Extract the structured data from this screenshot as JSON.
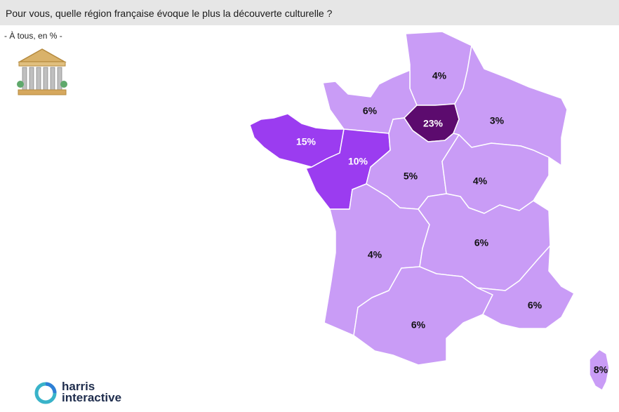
{
  "header": {
    "title": "Pour vous, quelle région française évoque le plus la découverte culturelle ?",
    "subtitle": "- À tous, en % -"
  },
  "icon": {
    "name": "museum-icon"
  },
  "map": {
    "regions": [
      {
        "id": "hauts-de-france",
        "value": "4%",
        "fill": "#c99cf6",
        "text_color": "#111111"
      },
      {
        "id": "normandie",
        "value": "6%",
        "fill": "#c99cf6",
        "text_color": "#111111"
      },
      {
        "id": "ile-de-france",
        "value": "23%",
        "fill": "#5c0b6e",
        "text_color": "#ffffff"
      },
      {
        "id": "grand-est",
        "value": "3%",
        "fill": "#c99cf6",
        "text_color": "#111111"
      },
      {
        "id": "bretagne",
        "value": "15%",
        "fill": "#9b3cf0",
        "text_color": "#ffffff"
      },
      {
        "id": "pays-de-la-loire",
        "value": "10%",
        "fill": "#9b3cf0",
        "text_color": "#ffffff"
      },
      {
        "id": "centre-val-de-loire",
        "value": "5%",
        "fill": "#c99cf6",
        "text_color": "#111111"
      },
      {
        "id": "bourgogne-franche-comte",
        "value": "4%",
        "fill": "#c99cf6",
        "text_color": "#111111"
      },
      {
        "id": "nouvelle-aquitaine",
        "value": "4%",
        "fill": "#c99cf6",
        "text_color": "#111111"
      },
      {
        "id": "auvergne-rhone-alpes",
        "value": "6%",
        "fill": "#c99cf6",
        "text_color": "#111111"
      },
      {
        "id": "occitanie",
        "value": "6%",
        "fill": "#c99cf6",
        "text_color": "#111111"
      },
      {
        "id": "provence-alpes-cote-azur",
        "value": "6%",
        "fill": "#c99cf6",
        "text_color": "#111111"
      },
      {
        "id": "corse",
        "value": "8%",
        "fill": "#c99cf6",
        "text_color": "#111111"
      }
    ]
  },
  "logo": {
    "line1": "harris",
    "line2": "interactive"
  }
}
